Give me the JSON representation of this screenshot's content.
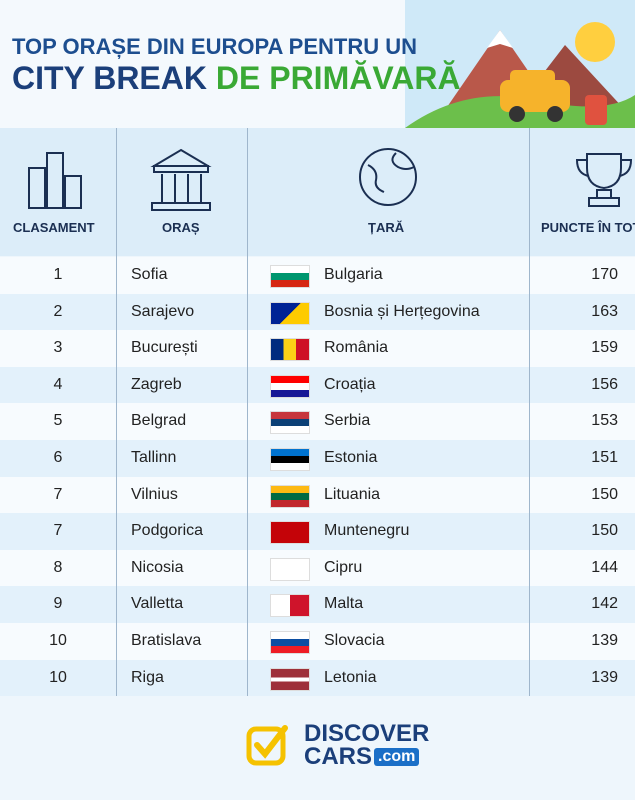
{
  "header": {
    "title_line1": "TOP ORAȘE DIN EUROPA PENTRU UN",
    "title_part1": "CITY BREAK",
    "title_part2": "DE PRIMĂVARĂ"
  },
  "table": {
    "columns": [
      "CLASAMENT",
      "ORAȘ",
      "ȚARĂ",
      "PUNCTE ÎN TOTAL"
    ],
    "rows": [
      [
        "1",
        "Sofia",
        "Bulgaria",
        "170"
      ],
      [
        "2",
        "Sarajevo",
        "Bosnia și Herțegovina",
        "163"
      ],
      [
        "3",
        "București",
        "România",
        "159"
      ],
      [
        "4",
        "Zagreb",
        "Croația",
        "156"
      ],
      [
        "5",
        "Belgrad",
        "Serbia",
        "153"
      ],
      [
        "6",
        "Tallinn",
        "Estonia",
        "151"
      ],
      [
        "7",
        "Vilnius",
        "Lituania",
        "150"
      ],
      [
        "7",
        "Podgorica",
        "Muntenegru",
        "150"
      ],
      [
        "8",
        "Nicosia",
        "Cipru",
        "144"
      ],
      [
        "9",
        "Valletta",
        "Malta",
        "142"
      ],
      [
        "10",
        "Bratislava",
        "Slovacia",
        "139"
      ],
      [
        "10",
        "Riga",
        "Letonia",
        "139"
      ]
    ]
  },
  "footer": {
    "logo_line1": "DISCOVER",
    "logo_line2": "CARS",
    "logo_suffix": ".com"
  }
}
